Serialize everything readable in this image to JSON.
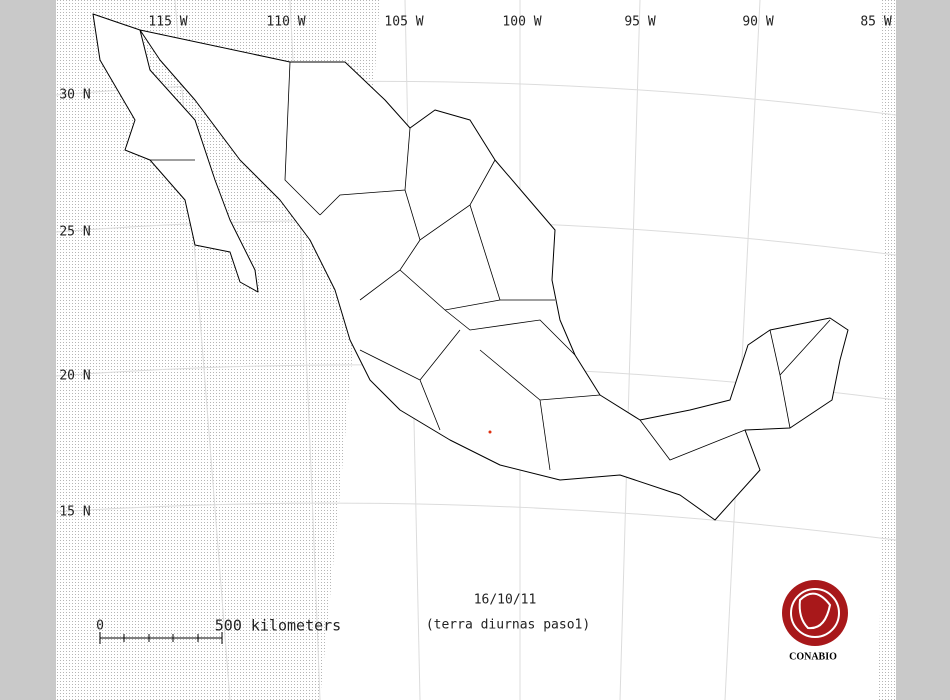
{
  "map": {
    "longitude_labels": [
      "115 W",
      "110 W",
      "105 W",
      "100 W",
      "95 W",
      "90 W",
      "85 W"
    ],
    "latitude_labels": [
      "30 N",
      "25 N",
      "20 N",
      "15 N"
    ],
    "date": "16/10/11",
    "subtitle": "(terra diurnas paso1)",
    "scale_bar": {
      "start": "0",
      "end": "500 kilometers"
    },
    "logo": "CONABIO"
  }
}
